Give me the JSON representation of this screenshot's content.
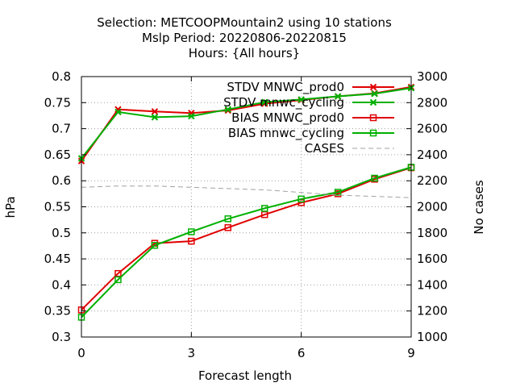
{
  "chart_data": {
    "type": "line",
    "title_lines": [
      "Selection: METCOOPMountain2 using    10 stations",
      "Mslp   Period: 20220806-20220815",
      "Hours: {All hours}"
    ],
    "xlabel": "Forecast length",
    "ylabel": "hPa",
    "y2label": "No cases",
    "xlim": [
      0,
      9
    ],
    "ylim": [
      0.3,
      0.8
    ],
    "y2lim": [
      1000,
      3000
    ],
    "x_ticks": [
      0,
      3,
      6,
      9
    ],
    "y_ticks": [
      0.3,
      0.35,
      0.4,
      0.45,
      0.5,
      0.55,
      0.6,
      0.65,
      0.7,
      0.75,
      0.8
    ],
    "y2_ticks": [
      1000,
      1200,
      1400,
      1600,
      1800,
      2000,
      2200,
      2400,
      2600,
      2800,
      3000
    ],
    "grid": true,
    "legend_position": "top-right",
    "x": [
      0,
      1,
      2,
      3,
      4,
      5,
      6,
      7,
      8,
      9
    ],
    "series": [
      {
        "name": "STDV MNWC_prod0",
        "color": "#e00000",
        "marker": "x",
        "axis": "left",
        "values": [
          0.638,
          0.737,
          0.733,
          0.73,
          0.735,
          0.748,
          0.755,
          0.762,
          0.768,
          0.78
        ]
      },
      {
        "name": "STDV mnwc_cycling",
        "color": "#00b000",
        "marker": "x",
        "axis": "left",
        "values": [
          0.643,
          0.732,
          0.722,
          0.724,
          0.737,
          0.751,
          0.756,
          0.762,
          0.767,
          0.778
        ]
      },
      {
        "name": "BIAS MNWC_prod0",
        "color": "#e00000",
        "marker": "square",
        "axis": "left",
        "values": [
          0.352,
          0.422,
          0.48,
          0.484,
          0.51,
          0.535,
          0.558,
          0.575,
          0.603,
          0.625
        ]
      },
      {
        "name": "BIAS mnwc_cycling",
        "color": "#00b000",
        "marker": "square",
        "axis": "left",
        "values": [
          0.338,
          0.41,
          0.476,
          0.502,
          0.527,
          0.547,
          0.565,
          0.578,
          0.605,
          0.626
        ]
      },
      {
        "name": "CASES",
        "color": "#a0a0a0",
        "marker": "none",
        "dashed": true,
        "axis": "right",
        "values": [
          2150,
          2160,
          2160,
          2150,
          2140,
          2130,
          2110,
          2090,
          2080,
          2070
        ]
      }
    ]
  }
}
